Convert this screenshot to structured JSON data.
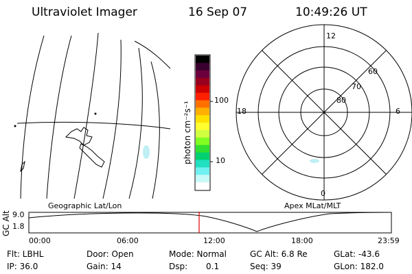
{
  "header": {
    "instrument": "Ultraviolet Imager",
    "date": "16 Sep 07",
    "time": "10:49:26 UT"
  },
  "geo_panel": {
    "label": "Geographic Lat/Lon"
  },
  "colorbar": {
    "unit_label": "photon cm⁻²s⁻¹",
    "ticks": [
      "100",
      "10"
    ],
    "colors": [
      "#000000",
      "#3a0030",
      "#6b003c",
      "#99001e",
      "#cc0000",
      "#ff2000",
      "#ff7000",
      "#ffb000",
      "#ffe000",
      "#ffff30",
      "#d0ff40",
      "#80ff20",
      "#30e030",
      "#00d070",
      "#20e0c0",
      "#70f0f0",
      "#c8f8f8",
      "#ffffff"
    ]
  },
  "polar_panel": {
    "label": "Apex  MLat/MLT",
    "mlt_labels": {
      "top": "12",
      "left": "18",
      "right": "6",
      "bottom": "0"
    },
    "lat_labels": [
      "60",
      "70",
      "80"
    ]
  },
  "timeline": {
    "axis_label": "GC Alt",
    "y_ticks": [
      "9.0",
      "1.8"
    ],
    "x_ticks": [
      "00:00",
      "06:00",
      "12:00",
      "18:00",
      "23:59"
    ],
    "marker_color": "#e00000"
  },
  "info": {
    "flt": "Flt: LBHL",
    "ip": "IP: 36.0",
    "door": "Door: Open",
    "gain": "Gain: 14",
    "mode": "Mode: Normal",
    "dsp_label": "Dsp:",
    "dsp_value": "0.1",
    "gc_alt": "GC Alt: 6.8 Re",
    "seq": "Seq: 39",
    "glat": "GLat: -43.6",
    "glon": "GLon: 182.0"
  }
}
